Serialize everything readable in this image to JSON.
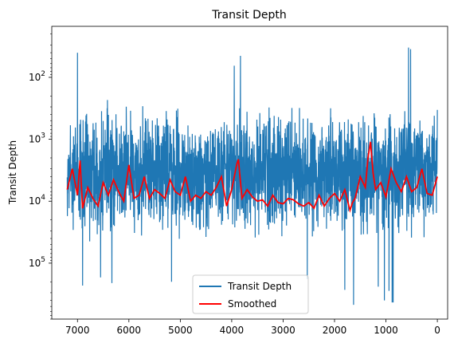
{
  "chart_data": {
    "type": "line",
    "title": "Transit Depth",
    "xlabel": "",
    "ylabel": "Transit Depth",
    "xlim": [
      7500,
      -200
    ],
    "x_inverted": true,
    "y_scale": "log",
    "y_inverted": true,
    "ylim": [
      15,
      800000
    ],
    "x_ticks": [
      7000,
      6000,
      5000,
      4000,
      3000,
      2000,
      1000,
      0
    ],
    "x_tick_labels": [
      "7000",
      "6000",
      "5000",
      "4000",
      "3000",
      "2000",
      "1000",
      "0"
    ],
    "y_ticks": [
      100,
      1000,
      10000,
      100000
    ],
    "y_tick_labels": [
      {
        "base": "10",
        "exp": "2"
      },
      {
        "base": "10",
        "exp": "3"
      },
      {
        "base": "10",
        "exp": "4"
      },
      {
        "base": "10",
        "exp": "5"
      }
    ],
    "grid": false,
    "legend_placement": "lower center",
    "series": [
      {
        "name": "Transit Depth",
        "color": "#1f77b4",
        "x_range": [
          7200,
          0
        ],
        "typical_range": [
          200,
          60000
        ],
        "extremes": [
          {
            "x": 7000,
            "y": 40
          },
          {
            "x": 3950,
            "y": 65
          },
          {
            "x": 3830,
            "y": 45
          },
          {
            "x": 560,
            "y": 33
          },
          {
            "x": 520,
            "y": 35
          },
          {
            "x": 1630,
            "y": 470000
          },
          {
            "x": 880,
            "y": 430000
          },
          {
            "x": 860,
            "y": 430000
          },
          {
            "x": 6900,
            "y": 230000
          },
          {
            "x": 6550,
            "y": 170000
          },
          {
            "x": 6330,
            "y": 210000
          },
          {
            "x": 5170,
            "y": 200000
          },
          {
            "x": 2530,
            "y": 180000
          },
          {
            "x": 1800,
            "y": 270000
          },
          {
            "x": 1150,
            "y": 240000
          },
          {
            "x": 1030,
            "y": 400000
          },
          {
            "x": 940,
            "y": 280000
          }
        ]
      },
      {
        "name": "Smoothed",
        "color": "#ff0000",
        "x": [
          7200,
          7100,
          7000,
          6950,
          6900,
          6800,
          6700,
          6600,
          6500,
          6400,
          6300,
          6200,
          6100,
          6000,
          5900,
          5800,
          5700,
          5600,
          5500,
          5400,
          5300,
          5200,
          5100,
          5000,
          4900,
          4800,
          4700,
          4600,
          4500,
          4400,
          4300,
          4200,
          4100,
          4000,
          3900,
          3870,
          3800,
          3700,
          3600,
          3500,
          3400,
          3300,
          3200,
          3100,
          3000,
          2900,
          2800,
          2700,
          2600,
          2500,
          2400,
          2300,
          2200,
          2100,
          2000,
          1900,
          1800,
          1700,
          1650,
          1600,
          1500,
          1400,
          1350,
          1300,
          1250,
          1200,
          1100,
          1000,
          900,
          800,
          700,
          600,
          500,
          400,
          300,
          200,
          100,
          0
        ],
        "y": [
          6500,
          3000,
          8000,
          2200,
          13000,
          6000,
          9000,
          12000,
          5000,
          8000,
          4500,
          7000,
          10000,
          2600,
          9000,
          8000,
          4000,
          9000,
          6500,
          7500,
          9000,
          4500,
          7000,
          8000,
          4000,
          10000,
          8000,
          9000,
          7000,
          8000,
          6000,
          4000,
          12000,
          6500,
          2500,
          2100,
          9000,
          6500,
          8500,
          10000,
          9500,
          12000,
          8000,
          10500,
          11000,
          9000,
          9500,
          11000,
          12000,
          10500,
          13000,
          8000,
          12000,
          9000,
          7500,
          10000,
          6500,
          14000,
          10500,
          9000,
          4000,
          6000,
          2000,
          1100,
          3500,
          6500,
          5000,
          8500,
          3000,
          5000,
          7000,
          4000,
          7000,
          6000,
          3000,
          7500,
          8000,
          4000
        ]
      }
    ]
  }
}
